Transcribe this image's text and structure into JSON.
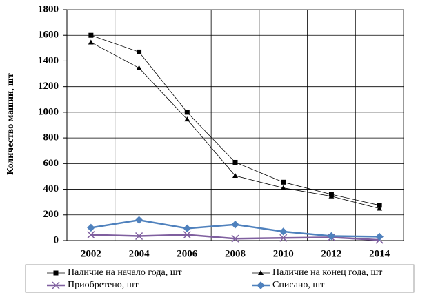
{
  "chart_data": {
    "type": "line",
    "y_label": "Количество машин, шт",
    "categories": [
      "2002",
      "2004",
      "2006",
      "2008",
      "2010",
      "2012",
      "2014"
    ],
    "series": [
      {
        "name": "Наличие на начало года, шт",
        "color": "#000000",
        "marker": "square",
        "values": [
          1600,
          1470,
          1000,
          610,
          455,
          360,
          275
        ]
      },
      {
        "name": "Наличие на конец года, шт",
        "color": "#000000",
        "marker": "triangle",
        "values": [
          1545,
          1345,
          945,
          505,
          410,
          345,
          250
        ]
      },
      {
        "name": "Приобретено, шт",
        "color": "#7f5f9f",
        "marker": "x",
        "values": [
          45,
          35,
          45,
          15,
          20,
          25,
          5
        ]
      },
      {
        "name": "Списано, шт",
        "color": "#4f81bd",
        "marker": "diamond",
        "values": [
          100,
          160,
          95,
          125,
          70,
          35,
          30
        ]
      }
    ],
    "ylim": [
      0,
      1800
    ],
    "yticks": [
      0,
      200,
      400,
      600,
      800,
      1000,
      1200,
      1400,
      1600,
      1800
    ],
    "grid": true,
    "legend": "bottom"
  }
}
